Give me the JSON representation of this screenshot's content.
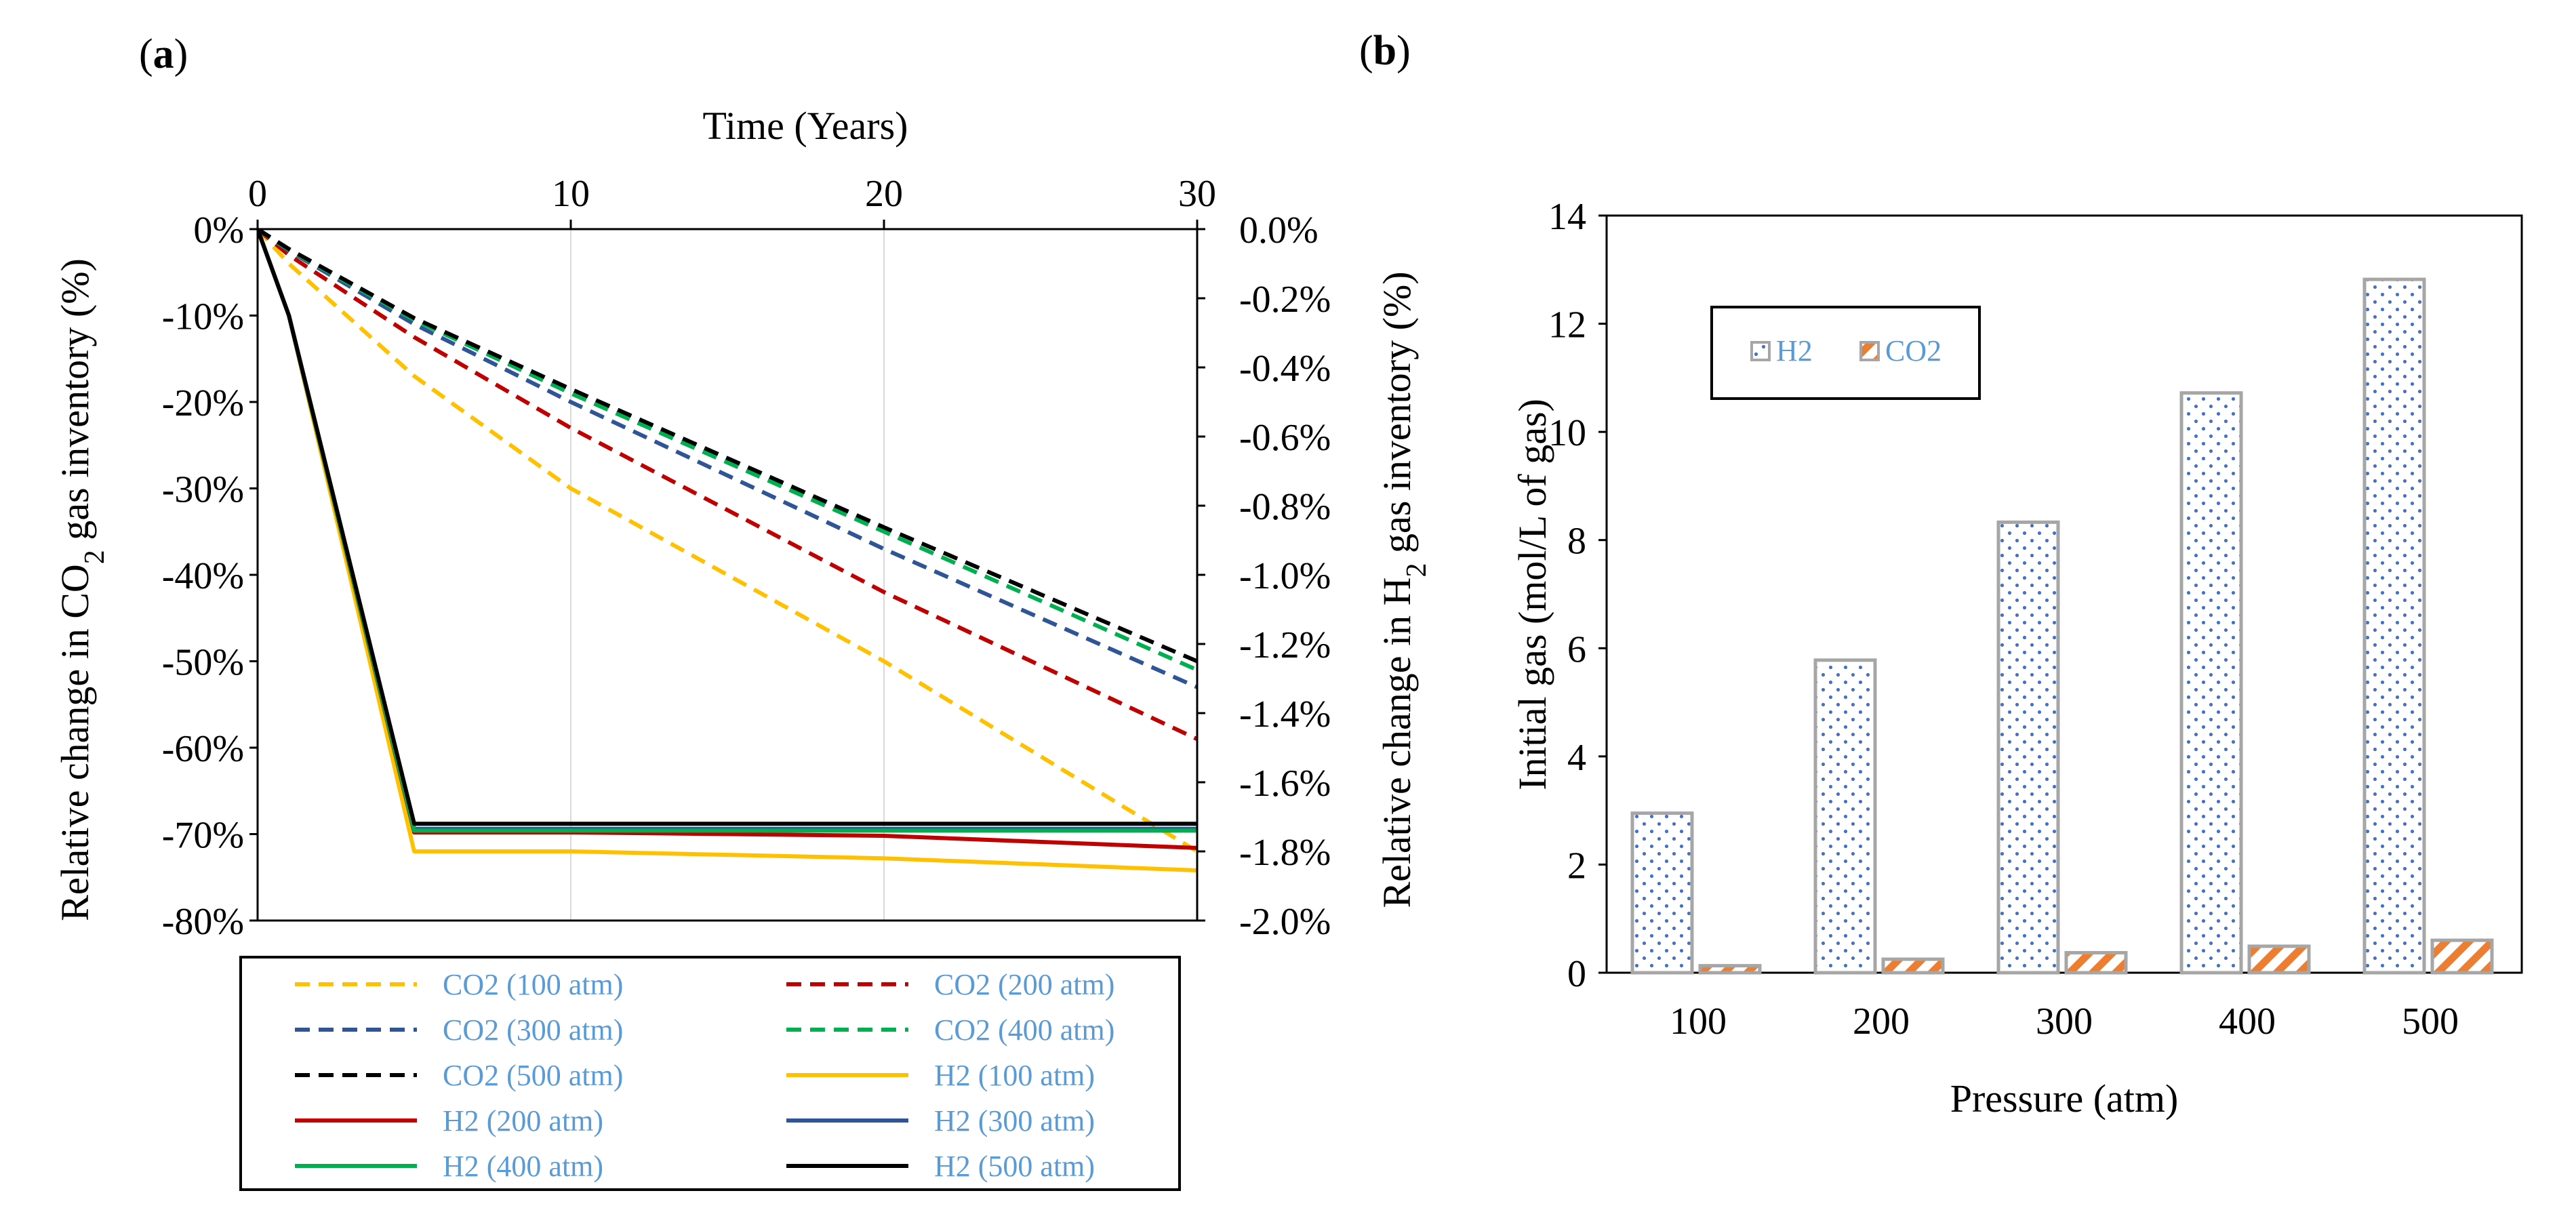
{
  "panels": {
    "a": {
      "label_open": "(",
      "label_letter": "a",
      "label_close": ")"
    },
    "b": {
      "label_open": "(",
      "label_letter": "b",
      "label_close": ")"
    }
  },
  "chart_data": [
    {
      "type": "line",
      "panel": "a",
      "xlabel": "Time (Years)",
      "xlim": [
        0,
        30
      ],
      "x_ticks": [
        0,
        10,
        20,
        30
      ],
      "ylabel_left_parts": [
        "Relative change in CO",
        "2",
        " gas inventory (%)"
      ],
      "ylabel_right_parts": [
        "Relative change in H",
        "2",
        " gas inventory (%)"
      ],
      "ylim_left": [
        -80,
        0
      ],
      "ylim_right": [
        -2.0,
        0.0
      ],
      "left_tick_labels": [
        "0%",
        "-10%",
        "-20%",
        "-30%",
        "-40%",
        "-50%",
        "-60%",
        "-70%",
        "-80%"
      ],
      "right_tick_labels": [
        "0.0%",
        "-0.2%",
        "-0.4%",
        "-0.6%",
        "-0.8%",
        "-1.0%",
        "-1.2%",
        "-1.4%",
        "-1.6%",
        "-1.8%",
        "-2.0%"
      ],
      "series": [
        {
          "name": "CO2 (100 atm)",
          "axis": "left",
          "style": "dashed",
          "color": "#ffc000",
          "x": [
            0,
            1,
            5,
            10,
            20,
            30
          ],
          "values": [
            0,
            -4,
            -17,
            -30,
            -50,
            -72
          ]
        },
        {
          "name": "CO2 (200 atm)",
          "axis": "left",
          "style": "dashed",
          "color": "#c00000",
          "x": [
            0,
            1,
            5,
            10,
            20,
            30
          ],
          "values": [
            0,
            -3,
            -12.5,
            -23,
            -42,
            -59
          ]
        },
        {
          "name": "CO2 (300 atm)",
          "axis": "left",
          "style": "dashed",
          "color": "#2f5597",
          "x": [
            0,
            1,
            5,
            10,
            20,
            30
          ],
          "values": [
            0,
            -2.5,
            -11,
            -20,
            -37,
            -53
          ]
        },
        {
          "name": "CO2 (400 atm)",
          "axis": "left",
          "style": "dashed",
          "color": "#00b050",
          "x": [
            0,
            1,
            5,
            10,
            20,
            30
          ],
          "values": [
            0,
            -2.4,
            -10.5,
            -19,
            -35,
            -51
          ]
        },
        {
          "name": "CO2 (500 atm)",
          "axis": "left",
          "style": "dashed",
          "color": "#000000",
          "x": [
            0,
            1,
            5,
            10,
            20,
            30
          ],
          "values": [
            0,
            -2.3,
            -10.3,
            -18.5,
            -34.5,
            -50
          ]
        },
        {
          "name": "H2 (100 atm)",
          "axis": "right",
          "style": "solid",
          "color": "#ffc000",
          "x": [
            0,
            1,
            5,
            10,
            20,
            30
          ],
          "values": [
            0,
            -0.25,
            -1.8,
            -1.8,
            -1.82,
            -1.855
          ]
        },
        {
          "name": "H2 (200 atm)",
          "axis": "right",
          "style": "solid",
          "color": "#c00000",
          "x": [
            0,
            1,
            5,
            10,
            20,
            30
          ],
          "values": [
            0,
            -0.25,
            -1.745,
            -1.745,
            -1.755,
            -1.79
          ]
        },
        {
          "name": "H2 (300 atm)",
          "axis": "right",
          "style": "solid",
          "color": "#2f5597",
          "x": [
            0,
            1,
            5,
            10,
            20,
            30
          ],
          "values": [
            0,
            -0.25,
            -1.735,
            -1.735,
            -1.735,
            -1.735
          ]
        },
        {
          "name": "H2 (400 atm)",
          "axis": "right",
          "style": "solid",
          "color": "#00b050",
          "x": [
            0,
            1,
            5,
            10,
            20,
            30
          ],
          "values": [
            0,
            -0.25,
            -1.74,
            -1.74,
            -1.74,
            -1.74
          ]
        },
        {
          "name": "H2 (500 atm)",
          "axis": "right",
          "style": "solid",
          "color": "#000000",
          "x": [
            0,
            1,
            5,
            10,
            20,
            30
          ],
          "values": [
            0,
            -0.25,
            -1.72,
            -1.72,
            -1.72,
            -1.72
          ]
        }
      ],
      "legend_position": "bottom"
    },
    {
      "type": "bar",
      "panel": "b",
      "xlabel": "Pressure (atm)",
      "ylabel": "Initial gas (mol/L of gas)",
      "ylim": [
        0,
        14
      ],
      "y_ticks": [
        0,
        2,
        4,
        6,
        8,
        10,
        12,
        14
      ],
      "categories": [
        "100",
        "200",
        "300",
        "400",
        "500"
      ],
      "series": [
        {
          "name": "H2",
          "color": "#4472c4",
          "pattern": "dotted",
          "values": [
            2.95,
            5.78,
            8.33,
            10.72,
            12.82
          ]
        },
        {
          "name": "CO2",
          "color": "#ed7d31",
          "pattern": "diagonal",
          "values": [
            0.13,
            0.25,
            0.37,
            0.49,
            0.6
          ]
        }
      ],
      "legend_position": "top-left"
    }
  ]
}
